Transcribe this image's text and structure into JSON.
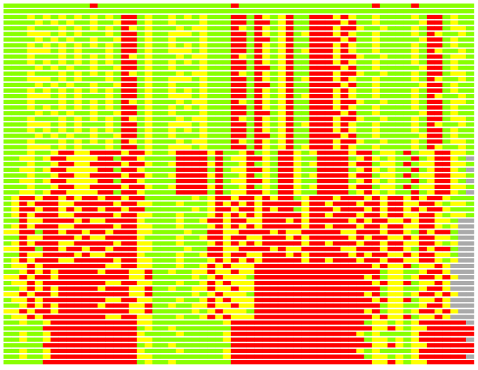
{
  "chart_data": {
    "type": "heatmap",
    "colors": {
      "g": "#88ff00",
      "y": "#ffff00",
      "r": "#ff0000",
      "n": "#aaaaaa"
    },
    "rows": [
      "gggggggggggrgggggggggggggggggrgggggggggggggggggrggggrggggggg",
      "gggggggggggggggggggggggggggggggggggggggggggggggggggggggggggg",
      "gggygygygygygygrrgyggygygygggrrgrygyrggrrryryggyggggygrrgygg",
      "ggggygygyggyggyrrgyggygggygggrrgrrgyrggrrrryrggygggggyrrgygg",
      "gggygggygygygygrygygggygyygggrygrygyrggrrryrryggygggygrrgyyg",
      "gggyyygygygggygrrgyggyyygygggrrgrygyrgyrrryryggyggggygryggyg",
      "ggggygygyggyggyrrgyggygggygggrrgrrgyrggrrrryrggygggggyrrgygg",
      "gggygygygygygygrrgyggygygygggrrgrygyrggrrryryggyggggygrrgygg",
      "gggyyygygygggygrrgyggyyygygggrrgrygyrgyrrryryggyggggygryggyg",
      "gggygggygygygygrygygggygyygggrygrygyrggrrryrryggygggygrrgyyg",
      "gggygygygygygygrrgyggygygygggrrgrygyrggrrryryggyggggygrrgygg",
      "ggggygygyggyggyrrgyggygggygggrrgrrgyrggrrrryrggygggggyrrgygg",
      "gggygggygygygygrygygggygyygggrygrygyrggrrryrryggygggygrrgyyg",
      "gggyyygygygggygrrgyggyyygygggrrgrygyrgyrrryryggyggggygryggyg",
      "ggggygygyggyggyrrgyggygggygggrrgrrgyrggrrrryrggygggggyrrgygg",
      "gggygygygygygygrrgyggygygygggrrgrygyrggrrryryggyggggygrrgygg",
      "gggyyygygygggygrrgyggyyygygggrrgrygyrgyrrryryggyggggygryggyg",
      "gggygggygygygygrygygggygyygggrygrygyrggrrryrryggygggygrrgyyg",
      "gggygygygygygygrrgyggygygygggrrgrygyrggrrryryggyggggygrrgygg",
      "ggggygygyggyggyrrgyggygggygggrrgrrgyrggrrrryrggygggggyrrgygg",
      "gggygggygygygygrygygggygyygggrygrygyrggrrryrryggygggygrrgyyg",
      "gggyyygygygggygrrgyggyyygygggrrgrygyrgyrrryryggyggggygryggyg",
      "gggygygygygygygrrgyggygygygggrrgrygyrggrrryryggyggggygrrgygg",
      "ggggygygyggyggyrrgyggygggygggrrgrrgyrggrrrryrggygggggyrrgygg",
      "gggygggygygygygrygygggygyygggrygrygyrggrrryrryggygggygrrgyyg",
      "gggyyygygygggygrrgyggyyygygggrrgrygyrgyrrryryggyggggygryggyg",
      "gggyggyrryyrrrryrryggyrrrryrggyrgygrrygyrrrryrrgyygrgyyrryyg",
      "ggyygyrryyyyrrgrryggggrrrrgrgyyrrygrryggrrrrgyrygyggrgyrrygn",
      "gggyggyrryyrrrryrryggyrrrryrggyrgygrrygyrrrryrrgyygrgyyrryyg",
      "ggyygyrryyyyrrgrryggggrrrrgrgyyrrygrryggrrrrgyrygyggrgyrrygn",
      "gggyggyrryyrrrryrryggyrrrryrggyrgygrrygyrrrryrrgyygrgyyrryyg",
      "ggyygyrryyyyrrgrryggggrrrrgrgyyrrygrryggrrrrgyrygyggrgyrrygn",
      "gggyggyrryyrrrryrryggyrrrryrggyrgygrrygyrrrryrrgyygrgyyrryyg",
      "ggyygyrryyyyrrgrryggggrrrrgrgyyrrygrryggrrrrgyrygyggrgyrrygn",
      "gyrryrryryrryrryrrggggggygyrryrryryrrgyrrryrrryryrryryrryggg",
      "gyryrrryyrrrrryrryygggygggyryryryrrrrryrryrrryrryrryyrrygyyg",
      "gyrryrryryrryrryrrggggggygyrryrryryrrgyrrryrrryryrryryrryggg",
      "gyryrrryyrrrrryrryygggygggyryryryrrrrryrryrrryrryrryyrrygyyg",
      "ggryyrrrryryyrrrryggggyggyrryrryyrrryryrrrrryryrryyryrryygnn",
      "gyryrrryyrrrrryrryygggygggyryryryrrrrryrryrrryrryrryyrrygynn",
      "yyrrgrryrryrryrrryyggggyggrryyrrrryryyrrrrryyrrryrrygryrrgnn",
      "ggryyrrrryryyrrrryggggyggyrryrryyrrryryrrrrryryrryyryrryygnn",
      "gyryrrryyrrrrryrryygggygggyryryryrrrrryrryrrryrryrryyrrygynn",
      "yyrrgrryrryrryrrryyggggyggrryyrrrryryyrrrrryyrrryrrygryrrgnn",
      "ggryyrrrryryyrrrryggggyggyrryrryyrrryryrrrrryryrryyryrryygnn",
      "gyryrrryyrrrrryrryygggygggyryryryrrrrryrryrrryrryrryyrrygynn",
      "gyyryrrrrrrrryyrryygggyggyryryyyrrrrrrrrrrrrrrryryyrgyyrynnn",
      "ggyryryrrrrryrrryyrggyggyyryyryyrrrrrrrrrrrrrrrrgyyggyrrynnn",
      "yyryrryrrrrrrrrryyrgggggygyryyygrrrrrrrrrrrrrryrgyygyrryrynn",
      "gyyryrrrrrrrryyrryygggyggyryryyyrrrrrrrrrrrrrrryryyrgyyrynnn",
      "ggyryryrrrrryrrryyrggyggyyryyryyrrrrrrrrrrrrrrrrgyyggyrrynnn",
      "yyryrryrrrrrrrrryyrgggggygyryyygrrrrrrrrrrrrrryrgyygyrryrynn",
      "gyyryrrrrrrrryyrryygggyggyryryyyrrrrrrrrrrrrrrryryyrgyyrynnn",
      "ggyryryrrrrryrrryyrggyggyyryyryyrrrrrrrrrrrrrrrrgyyggyrrynnn",
      "yyryrryrrrrrrrrryyrgggggygyryyygrrrrrrrrrrrrrryrgyygyrryrynn",
      "gyyryrrrrrrrryyrryygggyggyryryyyrrrrrrrrrrrrrrryryyrgyyrynnn",
      "ggyggyrrrrrrrrrrryygggggggggyrrrrrrrrrrrrrrrrrgyygygyrrrrrrn",
      "gggggrrrrrrrrrrrrgyggygggggggrrrrrrrrrrrrrrrrrryyrygyyrrrrrr",
      "ggyggyrrrrrrrrrrryggggygggggyrrrrrrrrrrrrrrrrygyggggyrrrrrrr",
      "ggyggyrrrrrrrrrrryygggggggggyrrrrrrrrrrrrrrrrrgyygygyrrrrrrn",
      "gggggrrrrrrrrrrrrgyggygggggggrrrrrrrrrrrrrrrrrryyrygyyrrrrrr",
      "ggyggyrrrrrrrrrrryggggygggggyrrrrrrrrrrrrrrrrygyggggyrrrrrrr",
      "ggyggyrrrrrrrrrrryygggggggggyrrrrrrrrrrrrrrrrrgyygygyrrrrrrn",
      "gggggrrrrrrrrrrrrgyggygggggggrrrrrrrrrrrrrrrrrryyrygyyrrrrrr"
    ]
  }
}
